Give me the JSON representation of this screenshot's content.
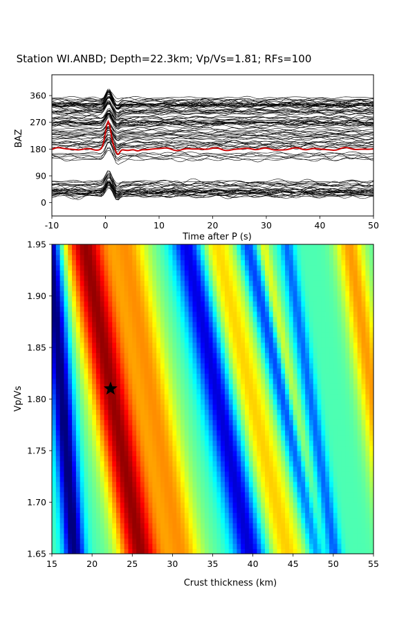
{
  "title": "Station WI.ANBD; Depth=22.3km; Vp/Vs=1.81; RFs=100",
  "chart_data": [
    {
      "type": "line",
      "xlabel": "Time after P (s)",
      "ylabel": "BAZ",
      "xlim": [
        -10,
        50
      ],
      "ylim": [
        -45,
        430
      ],
      "xticks": [
        "-10",
        "0",
        "10",
        "20",
        "30",
        "40",
        "50"
      ],
      "yticks": [
        "0",
        "90",
        "180",
        "270",
        "360"
      ],
      "num_traces": 100,
      "trace_color": "#000000",
      "stack_color": "#cc0000",
      "stack_baseline": 180,
      "stack_peak": {
        "time": 0.5,
        "value": 270
      }
    },
    {
      "type": "heatmap",
      "xlabel": "Crust thickness (km)",
      "ylabel": "Vp/Vs",
      "xlim": [
        15,
        55
      ],
      "ylim": [
        1.65,
        1.95
      ],
      "xticks": [
        "15",
        "20",
        "25",
        "30",
        "35",
        "40",
        "45",
        "50",
        "55"
      ],
      "yticks": [
        "1.65",
        "1.70",
        "1.75",
        "1.80",
        "1.85",
        "1.90",
        "1.95"
      ],
      "colormap": "jet",
      "best": {
        "thickness": 22.3,
        "vpvs": 1.81,
        "marker": "star",
        "color": "#000000"
      }
    }
  ]
}
